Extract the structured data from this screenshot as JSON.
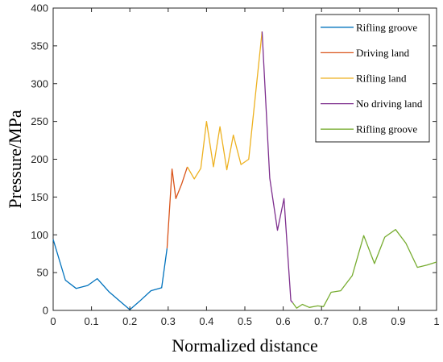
{
  "chart_data": {
    "type": "line",
    "xlabel": "Normalized distance",
    "ylabel": "Pressure/MPa",
    "xlim": [
      0,
      1
    ],
    "ylim": [
      0,
      400
    ],
    "xticks": [
      0,
      0.1,
      0.2,
      0.3,
      0.4,
      0.5,
      0.6,
      0.7,
      0.8,
      0.9,
      1
    ],
    "xtick_labels": [
      "0",
      "0.1",
      "0.2",
      "0.3",
      "0.4",
      "0.5",
      "0.6",
      "0.7",
      "0.8",
      "0.9",
      "1"
    ],
    "yticks": [
      0,
      50,
      100,
      150,
      200,
      250,
      300,
      350,
      400
    ],
    "ytick_labels": [
      "0",
      "50",
      "100",
      "150",
      "200",
      "250",
      "300",
      "350",
      "400"
    ],
    "grid": false,
    "legend_position": "top-right",
    "series": [
      {
        "name": "Rifling groove",
        "color": "#0072BD",
        "points": [
          [
            0,
            94
          ],
          [
            0.032,
            40
          ],
          [
            0.06,
            29
          ],
          [
            0.09,
            33
          ],
          [
            0.115,
            42
          ],
          [
            0.145,
            25
          ],
          [
            0.172,
            13
          ],
          [
            0.2,
            1
          ],
          [
            0.225,
            12
          ],
          [
            0.255,
            26
          ],
          [
            0.283,
            30
          ],
          [
            0.297,
            82
          ]
        ]
      },
      {
        "name": "Driving land",
        "color": "#D95319",
        "points": [
          [
            0.297,
            82
          ],
          [
            0.31,
            187
          ],
          [
            0.32,
            148
          ],
          [
            0.335,
            167
          ],
          [
            0.35,
            190
          ]
        ]
      },
      {
        "name": "Rifling land",
        "color": "#EDB120",
        "points": [
          [
            0.35,
            190
          ],
          [
            0.368,
            174
          ],
          [
            0.385,
            188
          ],
          [
            0.4,
            250
          ],
          [
            0.418,
            190
          ],
          [
            0.435,
            243
          ],
          [
            0.453,
            186
          ],
          [
            0.47,
            232
          ],
          [
            0.49,
            193
          ],
          [
            0.51,
            200
          ],
          [
            0.545,
            369
          ]
        ]
      },
      {
        "name": "No driving land",
        "color": "#7E2F8E",
        "points": [
          [
            0.545,
            369
          ],
          [
            0.565,
            175
          ],
          [
            0.585,
            106
          ],
          [
            0.602,
            148
          ],
          [
            0.62,
            13
          ],
          [
            0.625,
            10
          ]
        ]
      },
      {
        "name": "Rifling groove",
        "color": "#77AC30",
        "points": [
          [
            0.625,
            10
          ],
          [
            0.635,
            3
          ],
          [
            0.65,
            8
          ],
          [
            0.668,
            4
          ],
          [
            0.69,
            6
          ],
          [
            0.705,
            5
          ],
          [
            0.725,
            24
          ],
          [
            0.75,
            26
          ],
          [
            0.78,
            46
          ],
          [
            0.81,
            99
          ],
          [
            0.838,
            62
          ],
          [
            0.865,
            97
          ],
          [
            0.893,
            107
          ],
          [
            0.92,
            89
          ],
          [
            0.95,
            57
          ],
          [
            0.975,
            60
          ],
          [
            1,
            64
          ]
        ]
      }
    ]
  }
}
